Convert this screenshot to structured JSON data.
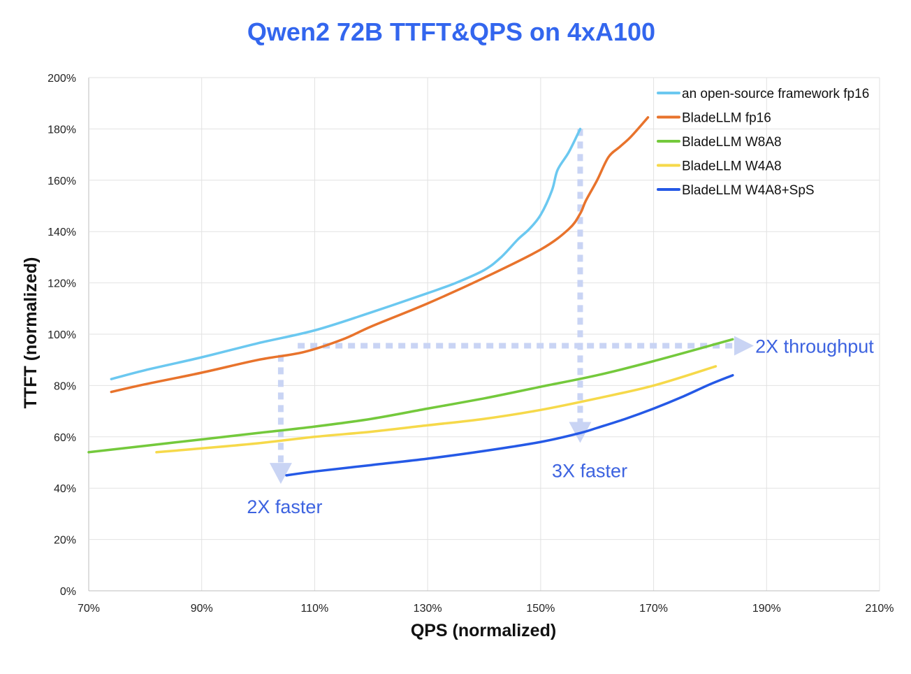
{
  "chart_data": {
    "type": "line",
    "title": "Qwen2 72B TTFT&QPS on 4xA100",
    "xlabel": "QPS (normalized)",
    "ylabel": "TTFT (normalized)",
    "xlim": [
      70,
      210
    ],
    "ylim": [
      0,
      200
    ],
    "x_ticks": [
      70,
      90,
      110,
      130,
      150,
      170,
      190,
      210
    ],
    "x_tick_labels": [
      "70%",
      "90%",
      "110%",
      "130%",
      "150%",
      "170%",
      "190%",
      "210%"
    ],
    "y_ticks": [
      0,
      20,
      40,
      60,
      80,
      100,
      120,
      140,
      160,
      180,
      200
    ],
    "y_tick_labels": [
      "0%",
      "20%",
      "40%",
      "60%",
      "80%",
      "100%",
      "120%",
      "140%",
      "160%",
      "180%",
      "200%"
    ],
    "grid": true,
    "legend_position": "top-right",
    "series": [
      {
        "name": "an open-source framework fp16",
        "color": "#6bc8f0",
        "points": [
          [
            74,
            82.5
          ],
          [
            80,
            86
          ],
          [
            90,
            91
          ],
          [
            100,
            96.5
          ],
          [
            110,
            101.5
          ],
          [
            120,
            108.5
          ],
          [
            130,
            116
          ],
          [
            135,
            120
          ],
          [
            140,
            125
          ],
          [
            143,
            130
          ],
          [
            146,
            137
          ],
          [
            148,
            141
          ],
          [
            150,
            146.5
          ],
          [
            152,
            156
          ],
          [
            153,
            164
          ],
          [
            155,
            171
          ],
          [
            157,
            180
          ]
        ]
      },
      {
        "name": "BladeLLM fp16",
        "color": "#e8732c",
        "points": [
          [
            74,
            77.5
          ],
          [
            80,
            80.5
          ],
          [
            90,
            85
          ],
          [
            100,
            90
          ],
          [
            108,
            93
          ],
          [
            115,
            98
          ],
          [
            120,
            103
          ],
          [
            130,
            112
          ],
          [
            140,
            122
          ],
          [
            150,
            133
          ],
          [
            155,
            141
          ],
          [
            157,
            147
          ],
          [
            158,
            152
          ],
          [
            160,
            160
          ],
          [
            162,
            169
          ],
          [
            164,
            173
          ],
          [
            166,
            177
          ],
          [
            169,
            184.5
          ]
        ]
      },
      {
        "name": "BladeLLM W8A8",
        "color": "#74c93c",
        "points": [
          [
            70,
            54
          ],
          [
            80,
            56.5
          ],
          [
            90,
            59
          ],
          [
            100,
            61.5
          ],
          [
            110,
            64
          ],
          [
            120,
            67
          ],
          [
            130,
            71
          ],
          [
            140,
            75
          ],
          [
            150,
            79.5
          ],
          [
            160,
            84
          ],
          [
            170,
            89.5
          ],
          [
            184,
            98
          ]
        ]
      },
      {
        "name": "BladeLLM W4A8",
        "color": "#f6d94a",
        "points": [
          [
            82,
            54
          ],
          [
            90,
            55.5
          ],
          [
            100,
            57.5
          ],
          [
            110,
            60
          ],
          [
            120,
            62
          ],
          [
            130,
            64.5
          ],
          [
            140,
            67
          ],
          [
            150,
            70.5
          ],
          [
            160,
            75
          ],
          [
            170,
            80
          ],
          [
            181,
            87.5
          ]
        ]
      },
      {
        "name": "BladeLLM W4A8+SpS",
        "color": "#2559e6",
        "points": [
          [
            105,
            45
          ],
          [
            110,
            46.5
          ],
          [
            120,
            49
          ],
          [
            130,
            51.5
          ],
          [
            140,
            54.5
          ],
          [
            150,
            58
          ],
          [
            157,
            61.5
          ],
          [
            160,
            63.5
          ],
          [
            165,
            67
          ],
          [
            170,
            71
          ],
          [
            175,
            75.5
          ],
          [
            180,
            80.5
          ],
          [
            184,
            84
          ]
        ]
      }
    ],
    "annotations": [
      {
        "text": "2X throughput",
        "x": 188,
        "y": 95.5
      },
      {
        "text": "3X faster",
        "x": 152,
        "y": 47
      },
      {
        "text": "2X faster",
        "x": 98,
        "y": 33
      }
    ],
    "guides": [
      {
        "type": "horizontal-arrow",
        "from": [
          107,
          95.5
        ],
        "to": [
          186,
          95.5
        ]
      },
      {
        "type": "vertical-arrow",
        "from": [
          157,
          180
        ],
        "to": [
          157,
          62
        ]
      },
      {
        "type": "vertical-arrow",
        "from": [
          104,
          92
        ],
        "to": [
          104,
          46
        ]
      }
    ]
  }
}
